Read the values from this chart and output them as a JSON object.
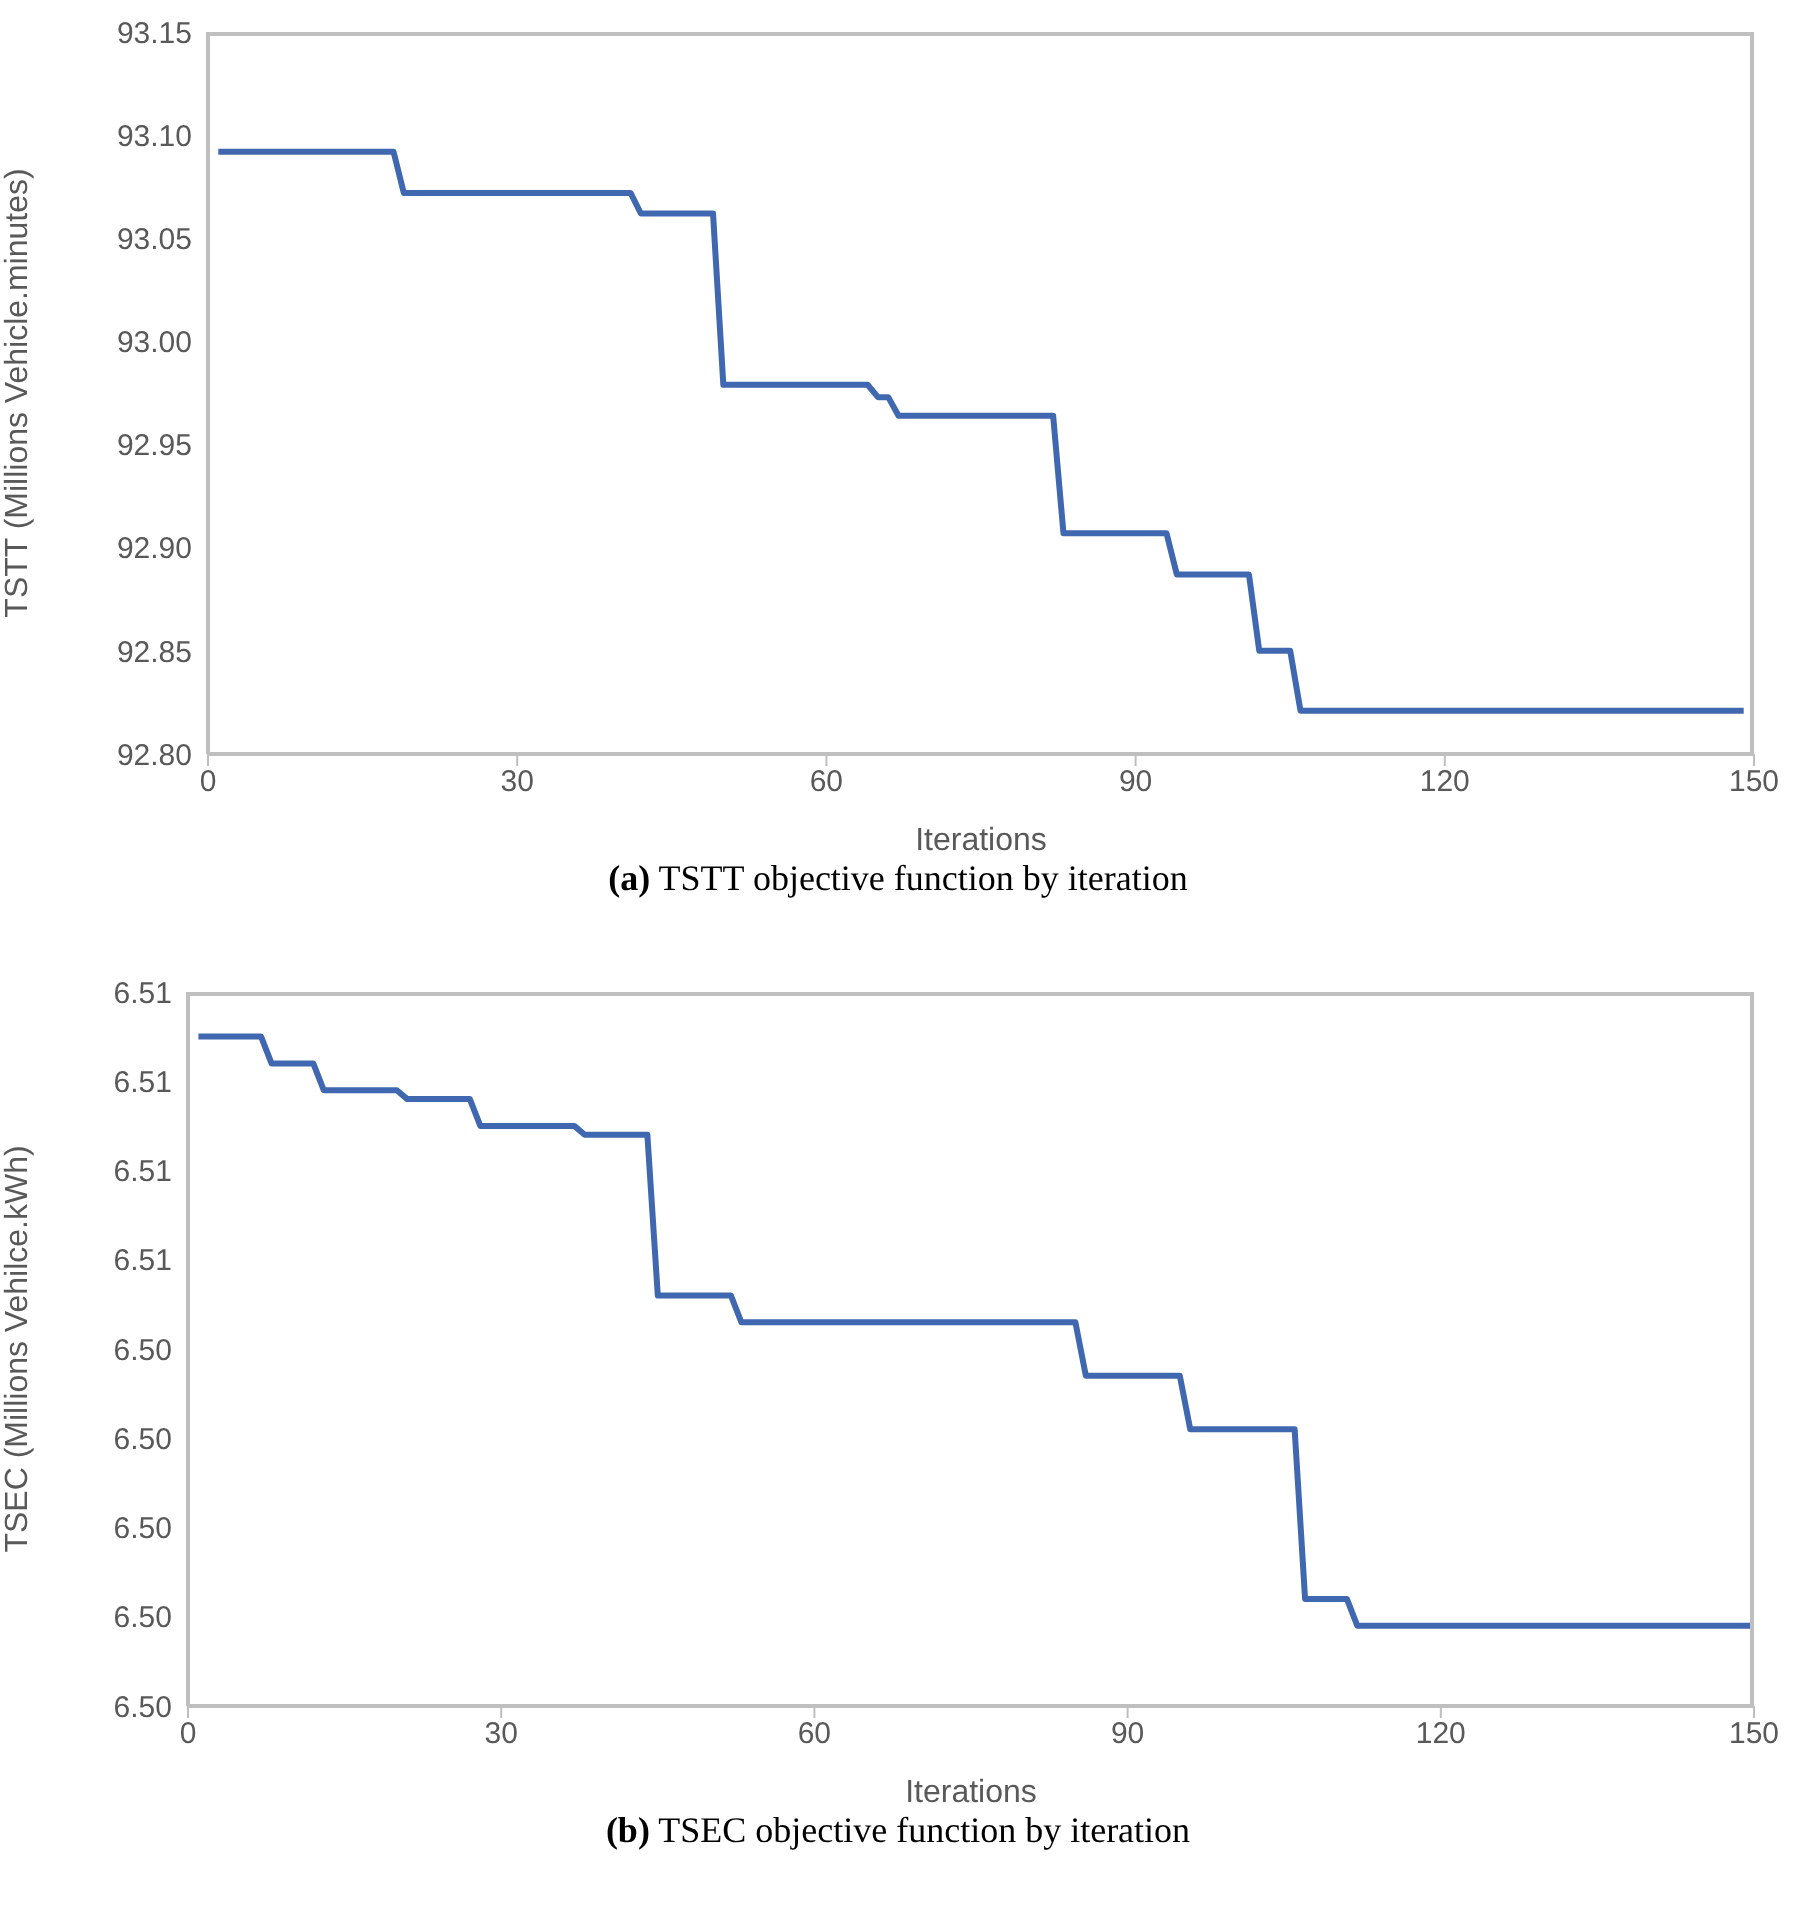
{
  "chart_data": [
    {
      "type": "line",
      "title": "(a) TSTT objective function by iteration",
      "xlabel": "Iterations",
      "ylabel": "TSTT (Millions Vehicle.minutes)",
      "xlim": [
        0,
        150
      ],
      "xticks": [
        0,
        30,
        60,
        90,
        120,
        150
      ],
      "ylim": [
        92.8,
        93.15
      ],
      "yticks": [
        {
          "value": 92.8,
          "label": "92.80"
        },
        92.85,
        {
          "value": 92.9,
          "label": "92.90"
        },
        92.95,
        {
          "value": 93,
          "label": "93.00"
        },
        93.05,
        {
          "value": 93.1,
          "label": "93.10"
        },
        93.15
      ],
      "series": [
        {
          "color": "#4068b0",
          "x": [
            1,
            18,
            19,
            41,
            42,
            49,
            50,
            64,
            65,
            66,
            67,
            82,
            83,
            93,
            94,
            101,
            102,
            105,
            106,
            149
          ],
          "values": [
            93.092,
            93.092,
            93.072,
            93.072,
            93.062,
            93.062,
            92.979,
            92.979,
            92.973,
            92.973,
            92.964,
            92.964,
            92.907,
            92.907,
            92.887,
            92.887,
            92.85,
            92.85,
            92.821,
            92.821
          ]
        }
      ]
    },
    {
      "type": "line",
      "title": "(b) TSEC objective function by iteration",
      "xlabel": "Iterations",
      "ylabel": "TSEC (Millions Vehilce.kWh)",
      "xlim": [
        0,
        150
      ],
      "xticks": [
        0,
        30,
        60,
        90,
        120,
        150
      ],
      "ylim": [
        6.5,
        6.508
      ],
      "yticks": [
        {
          "value": 6.5,
          "label": "6.50"
        },
        {
          "value": 6.501,
          "label": "6.50"
        },
        {
          "value": 6.502,
          "label": "6.50"
        },
        {
          "value": 6.503,
          "label": "6.50"
        },
        {
          "value": 6.504,
          "label": "6.50"
        },
        {
          "value": 6.505,
          "label": "6.51"
        },
        {
          "value": 6.506,
          "label": "6.51"
        },
        {
          "value": 6.507,
          "label": "6.51"
        },
        {
          "value": 6.508,
          "label": "6.51"
        }
      ],
      "series": [
        {
          "color": "#4068b0",
          "x": [
            1,
            7,
            8,
            12,
            13,
            20,
            21,
            27,
            28,
            37,
            38,
            44,
            45,
            52,
            53,
            85,
            86,
            95,
            96,
            106,
            107,
            111,
            112,
            150
          ],
          "values": [
            6.5075,
            6.5075,
            6.5072,
            6.5072,
            6.5069,
            6.5069,
            6.5068,
            6.5068,
            6.5065,
            6.5065,
            6.5064,
            6.5064,
            6.5046,
            6.5046,
            6.5043,
            6.5043,
            6.5037,
            6.5037,
            6.5031,
            6.5031,
            6.5012,
            6.5012,
            6.5009,
            6.5009
          ]
        }
      ]
    }
  ]
}
